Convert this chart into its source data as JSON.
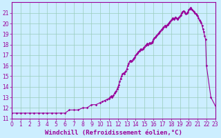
{
  "line_color": "#990099",
  "marker": "D",
  "markersize": 1.8,
  "linewidth": 0.8,
  "bg_color": "#cceeff",
  "grid_color": "#99ccbb",
  "xlabel": "Windchill (Refroidissement éolien,°C)",
  "xlabel_fontsize": 6.5,
  "tick_fontsize": 5.5,
  "xlim": [
    0,
    23
  ],
  "ylim": [
    11.0,
    22.0
  ],
  "yticks": [
    11,
    12,
    13,
    14,
    15,
    16,
    17,
    18,
    19,
    20,
    21
  ],
  "xticks": [
    0,
    1,
    2,
    3,
    4,
    5,
    6,
    7,
    8,
    9,
    10,
    11,
    12,
    13,
    14,
    15,
    16,
    17,
    18,
    19,
    20,
    21,
    22,
    23
  ],
  "x": [
    0,
    0.5,
    1,
    1.5,
    2,
    2.5,
    3,
    3.5,
    4,
    4.5,
    5,
    5.5,
    6,
    6.5,
    7,
    7.5,
    8,
    8.5,
    9,
    9.5,
    10,
    10.25,
    10.5,
    10.75,
    11,
    11.1,
    11.2,
    11.3,
    11.4,
    11.5,
    11.6,
    11.7,
    11.8,
    11.9,
    12,
    12.1,
    12.2,
    12.3,
    12.4,
    12.5,
    12.6,
    12.7,
    12.8,
    12.9,
    13,
    13.1,
    13.2,
    13.3,
    13.4,
    13.5,
    13.6,
    13.7,
    13.8,
    13.9,
    14,
    14.1,
    14.2,
    14.3,
    14.4,
    14.5,
    14.6,
    14.7,
    14.8,
    14.9,
    15,
    15.1,
    15.2,
    15.3,
    15.4,
    15.5,
    15.6,
    15.7,
    15.8,
    15.9,
    16,
    16.1,
    16.2,
    16.3,
    16.4,
    16.5,
    16.6,
    16.7,
    16.8,
    16.9,
    17,
    17.1,
    17.2,
    17.3,
    17.4,
    17.5,
    17.6,
    17.7,
    17.8,
    17.9,
    18,
    18.1,
    18.2,
    18.3,
    18.4,
    18.5,
    18.6,
    18.7,
    18.8,
    18.9,
    19,
    19.1,
    19.2,
    19.3,
    19.4,
    19.5,
    19.6,
    19.7,
    19.8,
    19.9,
    20,
    20.1,
    20.2,
    20.3,
    20.4,
    20.5,
    20.6,
    20.7,
    20.8,
    20.9,
    21,
    21.1,
    21.2,
    21.3,
    21.4,
    21.5,
    21.6,
    21.7,
    21.8,
    21.9,
    22,
    22.5,
    23
  ],
  "y": [
    11.5,
    11.5,
    11.5,
    11.5,
    11.5,
    11.5,
    11.5,
    11.5,
    11.5,
    11.5,
    11.5,
    11.5,
    11.5,
    11.8,
    11.8,
    11.8,
    12.0,
    12.0,
    12.3,
    12.3,
    12.5,
    12.6,
    12.7,
    12.8,
    12.9,
    13.0,
    13.1,
    13.0,
    13.1,
    13.2,
    13.4,
    13.5,
    13.6,
    13.8,
    14.0,
    14.2,
    14.5,
    14.8,
    15.0,
    15.2,
    15.3,
    15.2,
    15.4,
    15.5,
    15.7,
    16.0,
    16.2,
    16.4,
    16.5,
    16.4,
    16.5,
    16.6,
    16.7,
    16.8,
    17.0,
    17.1,
    17.2,
    17.3,
    17.4,
    17.5,
    17.6,
    17.5,
    17.6,
    17.7,
    17.8,
    17.9,
    18.0,
    18.1,
    18.0,
    18.1,
    18.2,
    18.1,
    18.2,
    18.3,
    18.5,
    18.6,
    18.7,
    18.8,
    18.9,
    19.0,
    19.1,
    19.2,
    19.3,
    19.4,
    19.5,
    19.6,
    19.7,
    19.8,
    19.7,
    19.8,
    19.9,
    20.0,
    20.1,
    20.2,
    20.3,
    20.4,
    20.5,
    20.4,
    20.5,
    20.6,
    20.5,
    20.4,
    20.5,
    20.6,
    20.7,
    20.8,
    21.0,
    21.1,
    21.2,
    21.1,
    21.0,
    20.9,
    21.0,
    21.1,
    21.3,
    21.4,
    21.5,
    21.4,
    21.3,
    21.2,
    21.1,
    21.0,
    20.9,
    20.8,
    20.7,
    20.5,
    20.3,
    20.2,
    20.1,
    19.8,
    19.5,
    19.2,
    18.8,
    18.5,
    16.0,
    13.0,
    12.2
  ]
}
